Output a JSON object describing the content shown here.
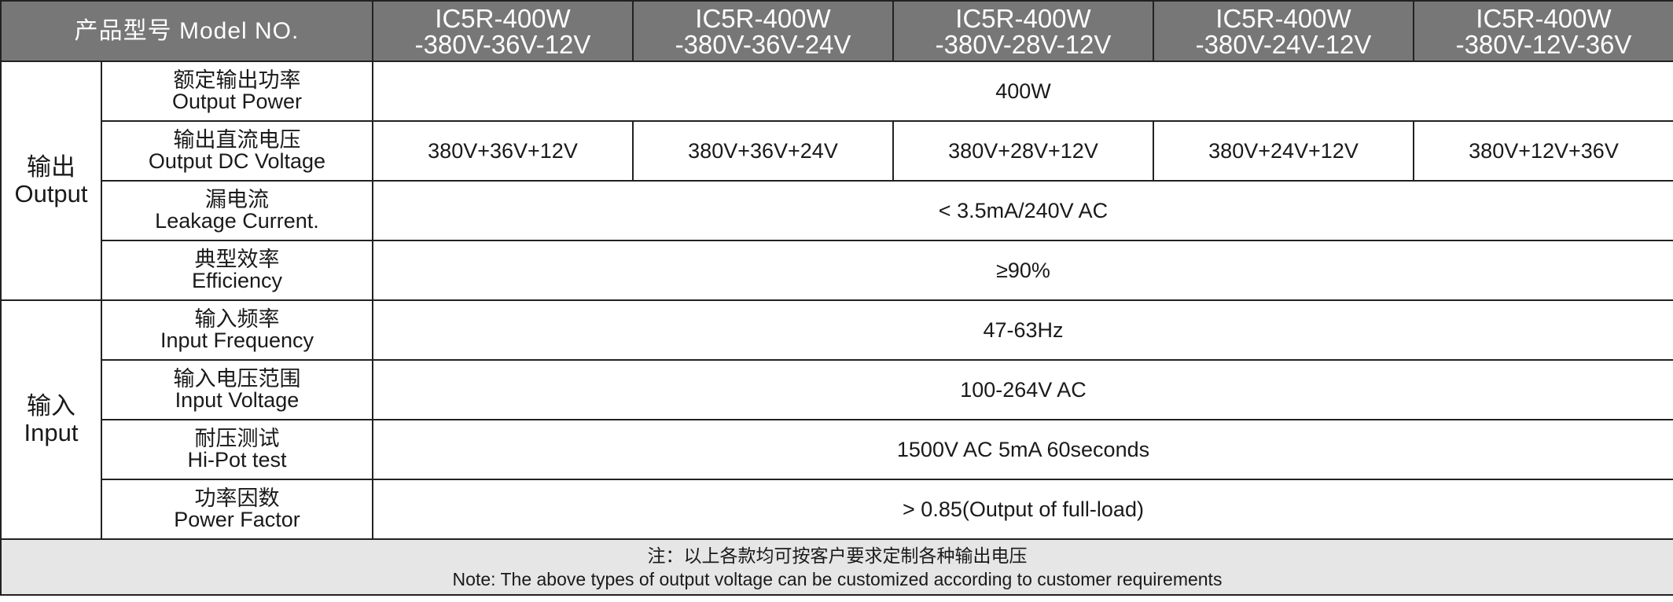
{
  "header": {
    "model_label": "产品型号 Model NO.",
    "models": [
      {
        "line1": "IC5R-400W",
        "line2": "-380V-36V-12V"
      },
      {
        "line1": "IC5R-400W",
        "line2": "-380V-36V-24V"
      },
      {
        "line1": "IC5R-400W",
        "line2": "-380V-28V-12V"
      },
      {
        "line1": "IC5R-400W",
        "line2": "-380V-24V-12V"
      },
      {
        "line1": "IC5R-400W",
        "line2": "-380V-12V-36V"
      }
    ]
  },
  "groups": {
    "output": {
      "zh": "输出",
      "en": "Output"
    },
    "input": {
      "zh": "输入",
      "en": "Input"
    }
  },
  "rows": {
    "output_power": {
      "zh": "额定输出功率",
      "en": "Output Power",
      "value": "400W"
    },
    "output_dc_voltage": {
      "zh": "输出直流电压",
      "en": "Output DC Voltage",
      "values": [
        "380V+36V+12V",
        "380V+36V+24V",
        "380V+28V+12V",
        "380V+24V+12V",
        "380V+12V+36V"
      ]
    },
    "leakage_current": {
      "zh": "漏电流",
      "en": "Leakage Current.",
      "value": "< 3.5mA/240V AC"
    },
    "efficiency": {
      "zh": "典型效率",
      "en": "Efficiency",
      "value": "≥90%"
    },
    "input_frequency": {
      "zh": "输入频率",
      "en": "Input Frequency",
      "value": "47-63Hz"
    },
    "input_voltage": {
      "zh": "输入电压范围",
      "en": "Input Voltage",
      "value": "100-264V AC"
    },
    "hipot": {
      "zh": "耐压测试",
      "en": "Hi-Pot test",
      "value": "1500V AC 5mA 60seconds"
    },
    "power_factor": {
      "zh": "功率因数",
      "en": "Power Factor",
      "value": "> 0.85(Output of full-load)"
    }
  },
  "note": {
    "zh": "注：以上各款均可按客户要求定制各种输出电压",
    "en": "Note: The above types of output voltage can be customized according to customer requirements"
  }
}
